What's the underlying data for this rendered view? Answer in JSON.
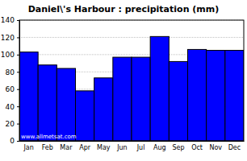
{
  "chart_data": {
    "type": "bar",
    "title": "Daniel\\'s Harbour : precipitation (mm)",
    "categories": [
      "Jan",
      "Feb",
      "Mar",
      "Apr",
      "May",
      "Jun",
      "Jul",
      "Aug",
      "Sep",
      "Oct",
      "Nov",
      "Dec"
    ],
    "values": [
      103,
      88,
      84,
      58,
      73,
      97,
      97,
      121,
      92,
      106,
      105,
      105
    ],
    "color": "#0000ff",
    "ylim": [
      0,
      140
    ],
    "yticks": [
      0,
      20,
      40,
      60,
      80,
      100,
      120,
      140
    ],
    "grid": true,
    "annotations": [
      "www.allmetsat.com"
    ]
  }
}
